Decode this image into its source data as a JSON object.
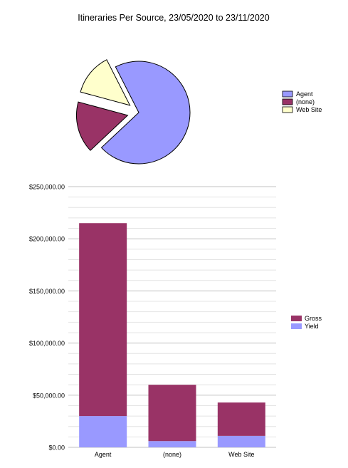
{
  "title": "Itineraries Per Source, 23/05/2020 to 23/11/2020",
  "colors": {
    "agent": "#9999FF",
    "none": "#993366",
    "website": "#FFFFCC",
    "gross": "#993366",
    "yield": "#9999FF",
    "grid_major": "#C0C0C0",
    "grid_minor": "#E4E4E4"
  },
  "chart_data": [
    {
      "type": "pie",
      "title": "Itineraries Per Source, 23/05/2020 to 23/11/2020",
      "exploded": true,
      "slices": [
        {
          "name": "Agent",
          "value": 70.5,
          "color": "#9999FF"
        },
        {
          "name": "(none)",
          "value": 16.2,
          "color": "#993366"
        },
        {
          "name": "Web Site",
          "value": 13.3,
          "color": "#FFFFCC"
        }
      ],
      "legend": [
        "Agent",
        "(none)",
        "Web Site"
      ],
      "legend_position": "right"
    },
    {
      "type": "bar",
      "stacked": true,
      "categories": [
        "Agent",
        "(none)",
        "Web Site"
      ],
      "series": [
        {
          "name": "Yield",
          "values": [
            30000,
            6000,
            11000
          ],
          "color": "#9999FF"
        },
        {
          "name": "Gross",
          "values": [
            185000,
            54000,
            32000
          ],
          "color": "#993366"
        }
      ],
      "legend": [
        "Gross",
        "Yield"
      ],
      "legend_position": "right",
      "ylim": [
        0,
        250000
      ],
      "yticks": [
        0,
        50000,
        100000,
        150000,
        200000,
        250000
      ],
      "ytick_labels": [
        "$0.00",
        "$50,000.00",
        "$100,000.00",
        "$150,000.00",
        "$200,000.00",
        "$250,000.00"
      ],
      "minor_step": 10000,
      "grid": true
    }
  ]
}
